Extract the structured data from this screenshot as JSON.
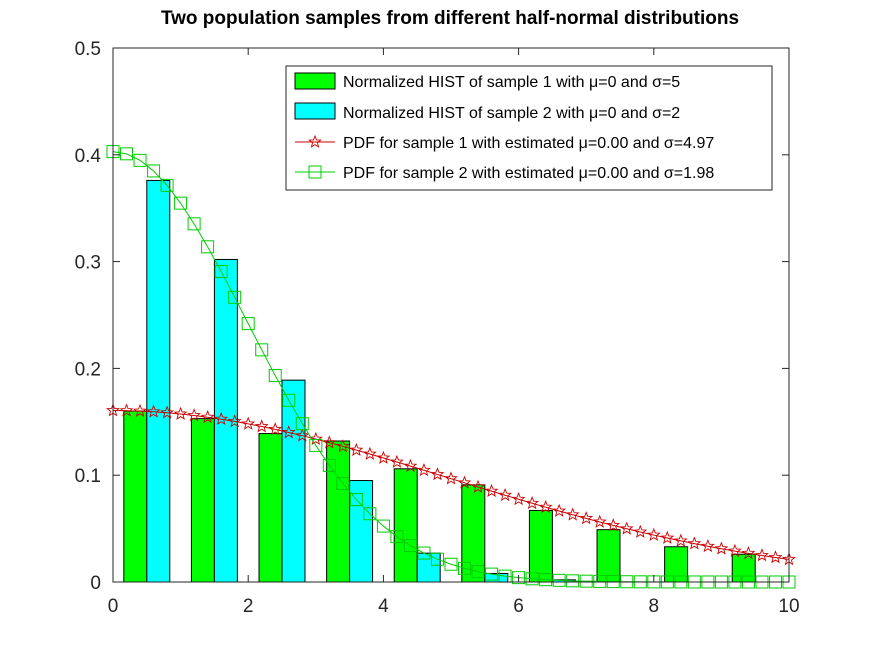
{
  "chart_data": {
    "type": "bar",
    "title": "Two population samples from different half-normal distributions",
    "xlabel": "",
    "ylabel": "",
    "xlim": [
      0,
      10
    ],
    "ylim": [
      0,
      0.5
    ],
    "xticks": [
      "0",
      "2",
      "4",
      "6",
      "8",
      "10"
    ],
    "yticks": [
      "0",
      "0.1",
      "0.2",
      "0.3",
      "0.4",
      "0.5"
    ],
    "grid": false,
    "legend_position": "top-right",
    "colors": {
      "sample1_bar": "#00ff00",
      "sample2_bar": "#00ffff",
      "pdf1_line": "#cc0000",
      "pdf2_line": "#00cc00"
    },
    "histograms": [
      {
        "name": "Normalized HIST of sample 1 with μ=0 and σ=5",
        "bin_centers": [
          0.5,
          1.5,
          2.5,
          3.5,
          4.5,
          5.5,
          6.5,
          7.5,
          8.5,
          9.5
        ],
        "values": [
          0.16,
          0.153,
          0.139,
          0.132,
          0.106,
          0.091,
          0.067,
          0.049,
          0.033,
          0.026
        ]
      },
      {
        "name": "Normalized HIST of sample 2 with μ=0 and σ=2",
        "bin_centers": [
          0.5,
          1.5,
          2.5,
          3.5,
          4.5,
          5.5,
          6.5,
          7.5,
          8.5,
          9.5
        ],
        "values": [
          0.376,
          0.302,
          0.189,
          0.095,
          0.027,
          0.008,
          0.002,
          0.0,
          0.0,
          0.0
        ]
      }
    ],
    "series": [
      {
        "name": "PDF for sample 1 with estimated μ=0.00 and σ=4.97",
        "sigma": 4.97,
        "marker": "star"
      },
      {
        "name": "PDF for sample 2 with estimated μ=0.00 and σ=1.98",
        "sigma": 1.98,
        "marker": "square"
      }
    ]
  }
}
